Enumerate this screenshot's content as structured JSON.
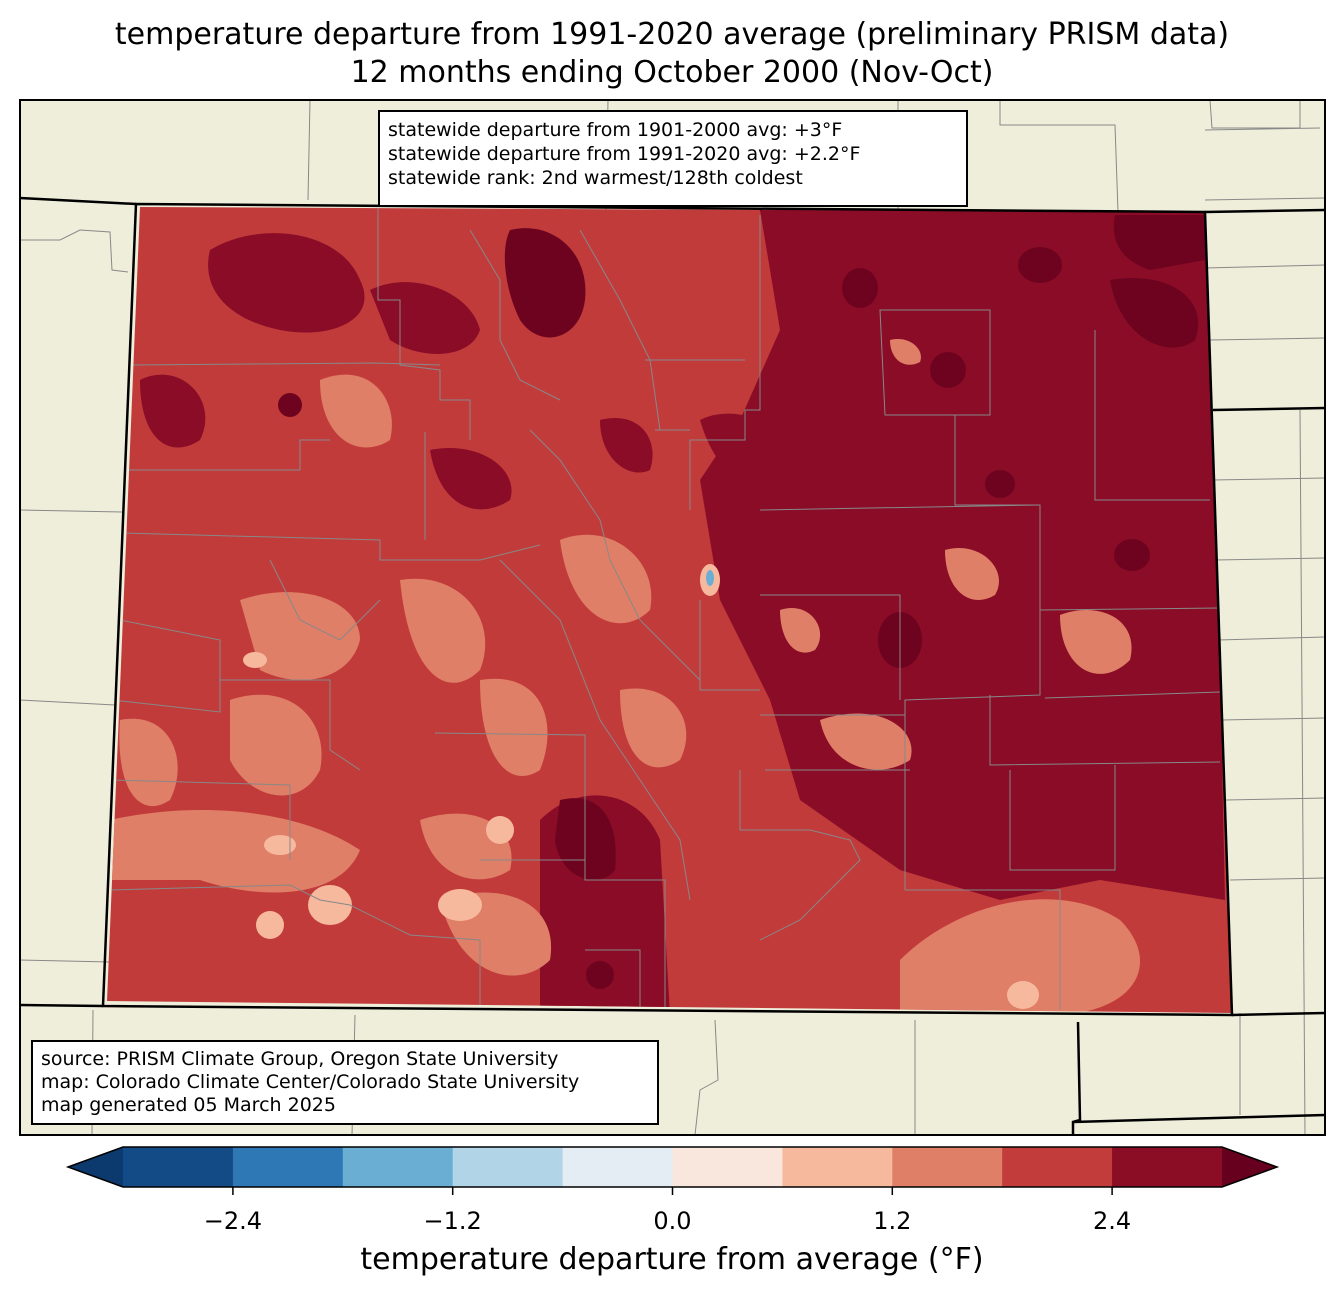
{
  "title": {
    "line1": "temperature departure from 1991-2020 average (preliminary PRISM data)",
    "line2": "12 months ending October 2000 (Nov-Oct)"
  },
  "stats": {
    "line1": "statewide departure from 1901-2000 avg: +3°F",
    "line2": "statewide departure from 1991-2020 avg: +2.2°F",
    "line3": "statewide rank: 2nd warmest/128th coldest"
  },
  "credits": {
    "line1": "source: PRISM Climate Group, Oregon State University",
    "line2": "map: Colorado Climate Center/Colorado State University",
    "line3": "map generated 05 March 2025"
  },
  "colorbar": {
    "label": "temperature departure from average (°F)",
    "ticks": [
      "−2.4",
      "−1.2",
      "0.0",
      "1.2",
      "2.4"
    ],
    "tick_values": [
      -2.4,
      -1.2,
      0.0,
      1.2,
      2.4
    ],
    "range": [
      -3.0,
      3.0
    ],
    "colors": [
      "#0d3a6e",
      "#134b87",
      "#2e79b5",
      "#6aaed3",
      "#b1d5e7",
      "#e3edf3",
      "#f9e6dc",
      "#f7b99e",
      "#e07f67",
      "#c23c3c",
      "#8a0c25",
      "#67001f"
    ]
  },
  "map_colors": {
    "background": "#efeedb",
    "darkest": "#6e0320",
    "dark": "#8a0c26",
    "mid": "#c23b3b",
    "light": "#e07f67",
    "pale": "#f7b99e"
  }
}
